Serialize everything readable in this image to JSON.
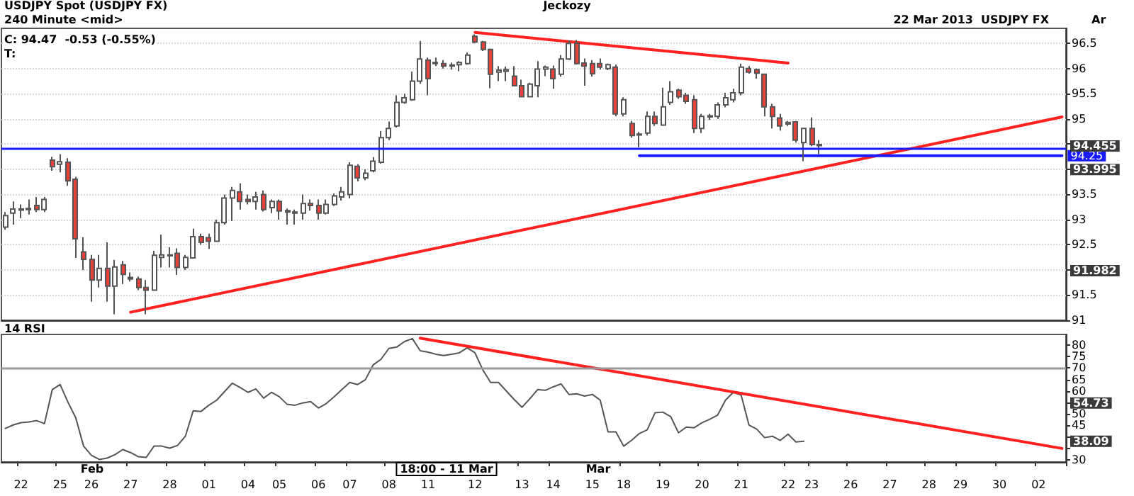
{
  "chart_data": [
    {
      "type": "candlestick",
      "title": "USDJPY Spot (USDJPY FX)",
      "subtitle": "240 Minute <mid>",
      "annotations": [
        "Jeckozy",
        "22 Mar 2013  USDJPY FX",
        "Ar",
        "C: 94.47  -0.53 (-0.55%)",
        "T:",
        "94.455",
        "93.995",
        "91.982"
      ],
      "categories": [
        null,
        null,
        "22",
        null,
        null,
        null,
        null,
        "25",
        null,
        null,
        null,
        "26",
        null,
        null,
        null,
        null,
        "27",
        null,
        null,
        null,
        null,
        "28",
        null,
        null,
        null,
        null,
        "01",
        null,
        null,
        null,
        null,
        "04",
        null,
        null,
        null,
        "05",
        null,
        null,
        null,
        null,
        "06",
        null,
        null,
        null,
        "07",
        null,
        null,
        null,
        null,
        "08",
        null,
        null,
        null,
        null,
        "11",
        null,
        null,
        null,
        null,
        null,
        "12",
        null,
        null,
        null,
        null,
        null,
        "13",
        null,
        null,
        null,
        "14",
        null,
        null,
        null,
        null,
        "15",
        null,
        null,
        null,
        "18",
        null,
        null,
        null,
        null,
        "19",
        null,
        null,
        null,
        null,
        "20",
        null,
        null,
        null,
        null,
        "21",
        null,
        null,
        null,
        null,
        null,
        "22",
        null,
        null,
        "23",
        null,
        null,
        null,
        null,
        "26",
        null,
        null,
        null,
        null,
        "27",
        null,
        null,
        null,
        null,
        "28",
        null,
        null,
        null,
        "29",
        null,
        null,
        null,
        null,
        "30",
        null,
        null,
        null,
        null,
        "02",
        null,
        null,
        null
      ],
      "ohlc": [
        [
          92.85,
          93.15,
          92.8,
          93.08
        ],
        [
          93.13,
          93.36,
          92.9,
          93.21
        ],
        [
          93.19,
          93.3,
          93.03,
          93.21
        ],
        [
          93.2,
          93.4,
          93.1,
          93.22
        ],
        [
          93.28,
          93.45,
          93.15,
          93.2
        ],
        [
          93.2,
          93.45,
          93.15,
          93.4
        ],
        [
          94.18,
          94.25,
          93.97,
          94.05
        ],
        [
          94.1,
          94.3,
          93.94,
          94.15
        ],
        [
          94.14,
          94.22,
          93.67,
          93.77
        ],
        [
          93.8,
          93.85,
          92.24,
          92.62
        ],
        [
          92.36,
          92.65,
          92.0,
          92.21
        ],
        [
          92.21,
          92.3,
          91.37,
          91.8
        ],
        [
          91.8,
          92.3,
          91.65,
          92.03
        ],
        [
          92.03,
          92.55,
          91.37,
          91.68
        ],
        [
          91.68,
          92.2,
          91.12,
          92.06
        ],
        [
          92.1,
          92.18,
          91.72,
          91.91
        ],
        [
          91.85,
          91.95,
          91.77,
          91.82
        ],
        [
          91.82,
          91.87,
          91.6,
          91.65
        ],
        [
          91.65,
          91.8,
          91.12,
          91.6
        ],
        [
          91.6,
          92.38,
          91.6,
          92.29
        ],
        [
          92.25,
          92.7,
          92.05,
          92.3
        ],
        [
          92.28,
          92.45,
          92.05,
          92.3
        ],
        [
          92.33,
          92.43,
          91.9,
          92.05
        ],
        [
          92.05,
          92.3,
          92.0,
          92.25
        ],
        [
          92.24,
          92.82,
          92.24,
          92.66
        ],
        [
          92.66,
          92.72,
          92.5,
          92.55
        ],
        [
          92.64,
          92.72,
          92.42,
          92.57
        ],
        [
          92.57,
          93.0,
          92.57,
          92.94
        ],
        [
          92.94,
          93.5,
          92.9,
          93.43
        ],
        [
          93.43,
          93.65,
          92.97,
          93.58
        ],
        [
          93.55,
          93.72,
          93.2,
          93.36
        ],
        [
          93.4,
          93.5,
          93.3,
          93.36
        ],
        [
          93.36,
          93.55,
          93.2,
          93.45
        ],
        [
          93.5,
          93.58,
          93.16,
          93.2
        ],
        [
          93.24,
          93.4,
          93.13,
          93.36
        ],
        [
          93.36,
          93.4,
          93.0,
          93.17
        ],
        [
          93.18,
          93.22,
          92.9,
          93.15
        ],
        [
          93.15,
          93.2,
          92.9,
          93.13
        ],
        [
          93.13,
          93.5,
          93.0,
          93.32
        ],
        [
          93.32,
          93.4,
          93.18,
          93.28
        ],
        [
          93.28,
          93.4,
          93.0,
          93.13
        ],
        [
          93.13,
          93.4,
          93.1,
          93.3
        ],
        [
          93.3,
          93.52,
          93.27,
          93.47
        ],
        [
          93.45,
          93.65,
          93.38,
          93.55
        ],
        [
          93.5,
          94.14,
          93.42,
          94.08
        ],
        [
          94.06,
          94.1,
          93.76,
          93.83
        ],
        [
          93.83,
          94.0,
          93.78,
          93.92
        ],
        [
          93.97,
          94.24,
          93.94,
          94.16
        ],
        [
          94.14,
          94.76,
          94.11,
          94.63
        ],
        [
          94.63,
          94.95,
          94.58,
          94.81
        ],
        [
          94.86,
          95.47,
          94.83,
          95.33
        ],
        [
          95.33,
          95.5,
          95.3,
          95.42
        ],
        [
          95.38,
          95.94,
          95.36,
          95.75
        ],
        [
          95.75,
          96.55,
          95.7,
          96.19
        ],
        [
          96.17,
          96.22,
          95.47,
          95.8
        ],
        [
          96.12,
          96.22,
          96.05,
          96.1
        ],
        [
          96.1,
          96.17,
          96.0,
          96.05
        ],
        [
          96.05,
          96.12,
          95.98,
          96.07
        ],
        [
          96.08,
          96.15,
          95.95,
          96.12
        ],
        [
          96.1,
          96.32,
          96.08,
          96.27
        ],
        [
          96.64,
          96.68,
          96.5,
          96.53
        ],
        [
          96.53,
          96.55,
          96.35,
          96.38
        ],
        [
          96.38,
          96.4,
          95.61,
          95.89
        ],
        [
          95.93,
          96.05,
          95.75,
          95.97
        ],
        [
          95.95,
          96.04,
          95.75,
          95.98
        ],
        [
          95.85,
          96.05,
          95.65,
          95.66
        ],
        [
          95.66,
          95.78,
          95.43,
          95.44
        ],
        [
          95.44,
          95.72,
          95.43,
          95.69
        ],
        [
          95.66,
          96.15,
          95.43,
          95.99
        ],
        [
          95.99,
          96.06,
          95.85,
          96.03
        ],
        [
          95.99,
          96.06,
          95.6,
          95.8
        ],
        [
          95.89,
          96.27,
          95.84,
          96.19
        ],
        [
          96.19,
          96.56,
          96.17,
          96.5
        ],
        [
          96.5,
          96.57,
          96.08,
          96.1
        ],
        [
          96.11,
          96.2,
          95.66,
          96.05
        ],
        [
          96.1,
          96.17,
          95.84,
          95.9
        ],
        [
          96.1,
          96.2,
          95.98,
          96.03
        ],
        [
          96.0,
          96.1,
          95.97,
          96.08
        ],
        [
          96.03,
          96.08,
          95.05,
          95.1
        ],
        [
          95.1,
          95.43,
          95.05,
          95.38
        ],
        [
          94.91,
          94.96,
          94.63,
          94.67
        ],
        [
          94.68,
          94.74,
          94.44,
          94.7
        ],
        [
          94.72,
          95.15,
          94.67,
          95.05
        ],
        [
          95.05,
          95.15,
          94.86,
          94.91
        ],
        [
          94.88,
          95.62,
          94.86,
          95.24
        ],
        [
          95.33,
          95.75,
          95.28,
          95.54
        ],
        [
          95.57,
          95.6,
          95.4,
          95.44
        ],
        [
          95.47,
          95.52,
          95.3,
          95.35
        ],
        [
          95.38,
          95.47,
          94.72,
          94.81
        ],
        [
          94.81,
          95.1,
          94.72,
          95.05
        ],
        [
          95.04,
          95.1,
          94.98,
          95.06
        ],
        [
          95.05,
          95.33,
          95.0,
          95.28
        ],
        [
          95.28,
          95.52,
          95.23,
          95.42
        ],
        [
          95.38,
          95.6,
          95.33,
          95.52
        ],
        [
          95.52,
          96.1,
          95.47,
          96.03
        ],
        [
          96.0,
          96.05,
          95.9,
          95.93
        ],
        [
          95.98,
          96.0,
          95.8,
          95.91
        ],
        [
          95.89,
          95.89,
          95.05,
          95.24
        ],
        [
          95.24,
          95.3,
          94.81,
          95.05
        ],
        [
          95.02,
          95.1,
          94.77,
          94.86
        ],
        [
          94.9,
          94.96,
          94.86,
          94.93
        ],
        [
          94.94,
          94.96,
          94.53,
          94.58
        ],
        [
          94.53,
          94.81,
          94.16,
          94.81
        ],
        [
          94.81,
          95.03,
          94.46,
          94.49
        ],
        [
          94.49,
          94.58,
          94.3,
          94.47
        ],
        null,
        null,
        null,
        null,
        null,
        null,
        null,
        null,
        null,
        null,
        null,
        null,
        null,
        null,
        null,
        null,
        null,
        null,
        null,
        null,
        null,
        null,
        null,
        null,
        null,
        null,
        null,
        null,
        null,
        null,
        null
      ],
      "colors": [
        "#ffffff",
        "#ffffff",
        "#ffffff",
        "#ffffff",
        "#e8413c",
        "#ffffff",
        "#e8413c",
        "#ffffff",
        "#e8413c",
        "#e8413c",
        "#e8413c",
        "#e8413c",
        "#ffffff",
        "#e8413c",
        "#ffffff",
        "#e8413c",
        "#e8413c",
        "#e8413c",
        "#e8413c",
        "#ffffff",
        "#ffffff",
        "#ffffff",
        "#e8413c",
        "#ffffff",
        "#ffffff",
        "#e8413c",
        "#e8413c",
        "#ffffff",
        "#ffffff",
        "#ffffff",
        "#e8413c",
        "#e8413c",
        "#ffffff",
        "#e8413c",
        "#ffffff",
        "#e8413c",
        "#e8413c",
        "#e8413c",
        "#ffffff",
        "#e8413c",
        "#e8413c",
        "#ffffff",
        "#ffffff",
        "#ffffff",
        "#ffffff",
        "#e8413c",
        "#ffffff",
        "#ffffff",
        "#ffffff",
        "#ffffff",
        "#ffffff",
        "#ffffff",
        "#ffffff",
        "#ffffff",
        "#e8413c",
        "#e8413c",
        "#e8413c",
        "#ffffff",
        "#ffffff",
        "#ffffff",
        "#e8413c",
        "#e8413c",
        "#e8413c",
        "#ffffff",
        "#ffffff",
        "#e8413c",
        "#e8413c",
        "#ffffff",
        "#ffffff",
        "#ffffff",
        "#e8413c",
        "#ffffff",
        "#ffffff",
        "#e8413c",
        "#e8413c",
        "#e8413c",
        "#e8413c",
        "#ffffff",
        "#e8413c",
        "#ffffff",
        "#e8413c",
        "#ffffff",
        "#ffffff",
        "#e8413c",
        "#ffffff",
        "#ffffff",
        "#e8413c",
        "#e8413c",
        "#e8413c",
        "#ffffff",
        "#ffffff",
        "#ffffff",
        "#ffffff",
        "#ffffff",
        "#ffffff",
        "#e8413c",
        "#e8413c",
        "#e8413c",
        "#e8413c",
        "#e8413c",
        "#ffffff",
        "#e8413c",
        "#ffffff",
        "#e8413c",
        "#e8413c",
        null,
        null,
        null,
        null,
        null,
        null,
        null,
        null,
        null,
        null,
        null,
        null,
        null,
        null,
        null,
        null,
        null,
        null,
        null,
        null,
        null,
        null,
        null,
        null,
        null,
        null,
        null,
        null,
        null,
        null,
        null
      ],
      "series": [
        {
          "type": "line",
          "color": "#ff2020",
          "values": [
            null,
            null,
            null,
            null,
            null,
            null,
            null,
            null,
            null,
            null,
            null,
            null,
            null,
            null,
            null,
            null,
            91.16,
            null,
            null,
            null,
            null,
            null,
            null,
            null,
            null,
            null,
            null,
            null,
            null,
            null,
            null,
            null,
            null,
            null,
            null,
            null,
            null,
            null,
            null,
            null,
            null,
            null,
            null,
            null,
            null,
            null,
            null,
            null,
            null,
            null,
            null,
            null,
            null,
            null,
            null,
            null,
            null,
            null,
            null,
            null,
            null,
            null,
            null,
            null,
            null,
            null,
            null,
            null,
            null,
            null,
            null,
            null,
            null,
            null,
            null,
            null,
            null,
            null,
            null,
            null,
            null,
            null,
            null,
            null,
            null,
            null,
            null,
            null,
            null,
            null,
            null,
            null,
            null,
            null,
            null,
            null,
            null,
            null,
            null,
            null,
            null,
            null,
            null,
            null,
            null,
            null,
            null,
            null,
            null,
            null,
            null,
            null,
            null,
            null,
            null,
            null,
            null,
            null,
            null,
            null,
            null,
            null,
            null,
            null,
            null,
            null,
            null,
            null,
            null,
            null,
            null,
            null,
            null,
            null,
            null,
            95.04
          ]
        },
        {
          "type": "line",
          "color": "#ff2020",
          "values": [
            null,
            null,
            null,
            null,
            null,
            null,
            null,
            null,
            null,
            null,
            null,
            null,
            null,
            null,
            null,
            null,
            null,
            null,
            null,
            null,
            null,
            null,
            null,
            null,
            null,
            null,
            null,
            null,
            null,
            null,
            null,
            null,
            null,
            null,
            null,
            null,
            null,
            null,
            null,
            null,
            null,
            null,
            null,
            null,
            null,
            null,
            null,
            null,
            null,
            null,
            null,
            null,
            null,
            null,
            null,
            null,
            null,
            null,
            null,
            null,
            96.72,
            null,
            null,
            null,
            null,
            null,
            null,
            null,
            null,
            null,
            null,
            null,
            null,
            null,
            null,
            null,
            null,
            null,
            null,
            null,
            null,
            null,
            null,
            null,
            null,
            null,
            null,
            null,
            null,
            null,
            null,
            null,
            null,
            null,
            null,
            null,
            null,
            null,
            null,
            null,
            96.11,
            null,
            null,
            null,
            null,
            null,
            null,
            null,
            null,
            null,
            null,
            null,
            null,
            null,
            null,
            null,
            null,
            null,
            null,
            null,
            null,
            null,
            null,
            null,
            null,
            null,
            null,
            null,
            null,
            null,
            null,
            null,
            null,
            null,
            null,
            null
          ]
        },
        {
          "type": "line",
          "name": "94.25",
          "color": "#1a1aff",
          "values": [
            null,
            null,
            null,
            null,
            null,
            null,
            null,
            null,
            null,
            null,
            null,
            null,
            null,
            null,
            null,
            null,
            null,
            null,
            null,
            null,
            null,
            null,
            null,
            null,
            null,
            null,
            null,
            null,
            null,
            null,
            null,
            null,
            null,
            null,
            null,
            null,
            null,
            null,
            null,
            null,
            null,
            null,
            null,
            null,
            null,
            null,
            null,
            null,
            null,
            null,
            null,
            null,
            null,
            null,
            null,
            null,
            null,
            null,
            null,
            null,
            null,
            null,
            null,
            null,
            null,
            null,
            null,
            null,
            null,
            null,
            null,
            null,
            null,
            null,
            null,
            null,
            null,
            null,
            null,
            null,
            null,
            94.27,
            null,
            null,
            null,
            null,
            null,
            null,
            null,
            null,
            null,
            null,
            null,
            null,
            null,
            null,
            null,
            null,
            null,
            null,
            null,
            null,
            null,
            null,
            null,
            null,
            null,
            null,
            null,
            null,
            null,
            null,
            null,
            null,
            null,
            null,
            null,
            null,
            null,
            null,
            null,
            null,
            null,
            null,
            null,
            null,
            null,
            null,
            null,
            null,
            null,
            null,
            null,
            null,
            null,
            94.27
          ]
        }
      ],
      "ref_lines": [
        {
          "axis": "y",
          "value": 94.41,
          "color": "#1a1aff"
        }
      ],
      "ylim": [
        91,
        96.8
      ],
      "yticks": [
        91,
        91.5,
        {
          "value": 92,
          "label": null
        },
        92.5,
        93,
        93.5,
        {
          "value": 94,
          "label": null
        },
        {
          "value": 94.5,
          "label": null
        },
        95,
        95.5,
        96,
        96.5
      ],
      "tick_labels": "y",
      "grid": "y"
    },
    {
      "type": "line",
      "title": "14 RSI",
      "annotations": [
        "Feb",
        "Mar",
        "54.73",
        "38.09",
        "18:00 - 11 Mar"
      ],
      "categories": [
        null,
        null,
        "22",
        null,
        null,
        null,
        null,
        "25",
        null,
        null,
        null,
        "26",
        null,
        null,
        null,
        null,
        "27",
        null,
        null,
        null,
        null,
        "28",
        null,
        null,
        null,
        null,
        "01",
        null,
        null,
        null,
        null,
        "04",
        null,
        null,
        null,
        "05",
        null,
        null,
        null,
        null,
        "06",
        null,
        null,
        null,
        "07",
        null,
        null,
        null,
        null,
        "08",
        null,
        null,
        null,
        null,
        "11",
        null,
        null,
        null,
        null,
        null,
        "12",
        null,
        null,
        null,
        null,
        null,
        "13",
        null,
        null,
        null,
        "14",
        null,
        null,
        null,
        null,
        "15",
        null,
        null,
        null,
        "18",
        null,
        null,
        null,
        null,
        "19",
        null,
        null,
        null,
        null,
        "20",
        null,
        null,
        null,
        null,
        "21",
        null,
        null,
        null,
        null,
        null,
        "22",
        null,
        null,
        "23",
        null,
        null,
        null,
        null,
        "26",
        null,
        null,
        null,
        null,
        "27",
        null,
        null,
        null,
        null,
        "28",
        null,
        null,
        null,
        "29",
        null,
        null,
        null,
        null,
        "30",
        null,
        null,
        null,
        null,
        "02",
        null,
        null,
        null
      ],
      "series": [
        {
          "color": "#555555",
          "values": [
            43.7,
            45.2,
            46.2,
            46.5,
            47.1,
            45.8,
            60.6,
            62.8,
            55.1,
            48.3,
            36.0,
            32.0,
            30.2,
            30.8,
            32.3,
            34.5,
            33.2,
            31.4,
            31.1,
            36.0,
            36.0,
            35.1,
            36.3,
            40.3,
            51.4,
            51.1,
            53.8,
            56.0,
            59.7,
            63.4,
            61.5,
            59.4,
            60.9,
            56.9,
            59.4,
            57.5,
            54.2,
            53.8,
            54.8,
            55.4,
            52.6,
            54.5,
            57.5,
            60.6,
            63.7,
            62.8,
            64.9,
            71.4,
            73.8,
            78.5,
            79.1,
            81.5,
            82.8,
            77.5,
            76.9,
            76.0,
            75.4,
            76.0,
            76.6,
            78.8,
            76.6,
            69.2,
            63.7,
            63.7,
            60.0,
            56.3,
            52.9,
            56.6,
            60.6,
            60.3,
            61.8,
            63.1,
            58.5,
            58.8,
            57.8,
            58.5,
            56.0,
            42.2,
            42.2,
            36.0,
            38.5,
            41.5,
            43.1,
            50.5,
            50.8,
            48.9,
            41.8,
            44.3,
            44.0,
            46.2,
            47.7,
            49.5,
            56.0,
            59.4,
            58.2,
            45.2,
            43.4,
            39.7,
            40.3,
            38.5,
            41.2,
            37.8,
            38.1,
            null,
            null,
            null,
            null,
            null,
            null,
            null,
            null,
            null,
            null,
            null,
            null,
            null,
            null,
            null,
            null,
            null,
            null,
            null,
            null,
            null,
            null,
            null,
            null,
            null,
            null,
            null,
            null,
            null,
            null,
            null,
            null,
            null
          ]
        },
        {
          "type": "line",
          "color": "#ff2020",
          "values": [
            null,
            null,
            null,
            null,
            null,
            null,
            null,
            null,
            null,
            null,
            null,
            null,
            null,
            null,
            null,
            null,
            null,
            null,
            null,
            null,
            null,
            null,
            null,
            null,
            null,
            null,
            null,
            null,
            null,
            null,
            null,
            null,
            null,
            null,
            null,
            null,
            null,
            null,
            null,
            null,
            null,
            null,
            null,
            null,
            null,
            null,
            null,
            null,
            null,
            null,
            null,
            null,
            null,
            83,
            null,
            null,
            null,
            null,
            null,
            null,
            null,
            null,
            null,
            null,
            null,
            null,
            null,
            null,
            null,
            null,
            null,
            null,
            null,
            null,
            null,
            null,
            null,
            null,
            null,
            null,
            null,
            null,
            null,
            null,
            null,
            null,
            null,
            null,
            null,
            null,
            null,
            null,
            null,
            null,
            null,
            null,
            null,
            null,
            null,
            null,
            null,
            null,
            null,
            null,
            null,
            null,
            null,
            null,
            null,
            null,
            null,
            null,
            null,
            null,
            null,
            null,
            null,
            null,
            null,
            null,
            null,
            null,
            null,
            null,
            null,
            null,
            null,
            null,
            null,
            null,
            null,
            null,
            null,
            null,
            null,
            35
          ]
        }
      ],
      "ref_lines": [
        {
          "axis": "y",
          "value": 70,
          "color": "#999999"
        }
      ],
      "ylim": [
        29.1,
        84.6
      ],
      "yticks": [
        30,
        {
          "value": 35,
          "label": null
        },
        {
          "value": 40,
          "label": null
        },
        45,
        50,
        {
          "value": 55,
          "label": null
        },
        60,
        65,
        70,
        75,
        80
      ]
    }
  ]
}
